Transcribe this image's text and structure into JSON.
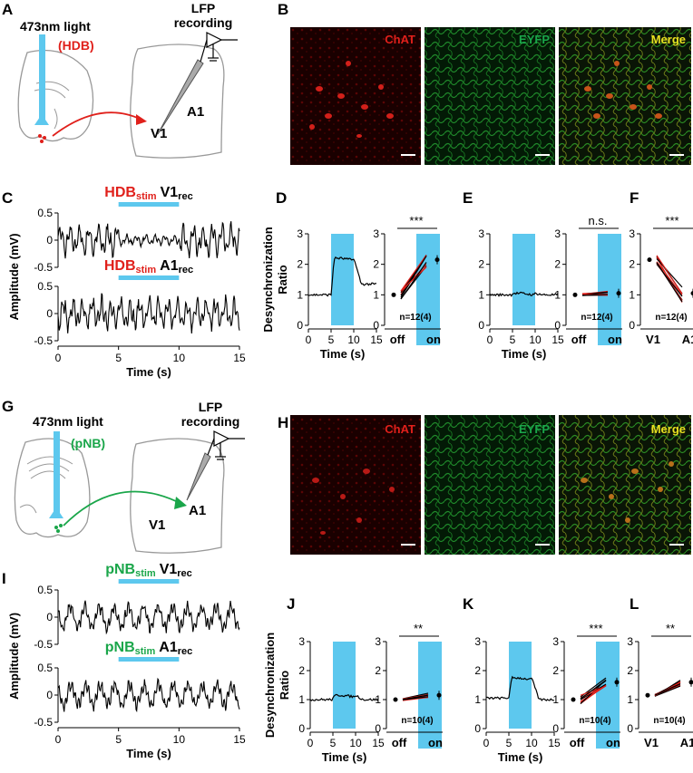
{
  "panels": {
    "A": "A",
    "B": "B",
    "C": "C",
    "D": "D",
    "E": "E",
    "F": "F",
    "G": "G",
    "H": "H",
    "I": "I",
    "J": "J",
    "K": "K",
    "L": "L"
  },
  "schematic_top": {
    "light": "473nm light",
    "region": "(HDB)",
    "region_color": "#e0201b",
    "recording_line1": "LFP",
    "recording_line2": "recording",
    "target": "V1",
    "other": "A1"
  },
  "schematic_bottom": {
    "light": "473nm light",
    "region": "(pNB)",
    "region_color": "#1aa64a",
    "recording_line1": "LFP",
    "recording_line2": "recording",
    "target": "A1",
    "other": "V1"
  },
  "micrographs": {
    "chat": "ChAT",
    "eyfp": "EYFP",
    "merge": "Merge",
    "chat_color": "#e0201b",
    "eyfp_color": "#1aa64a",
    "merge_color": "#e8e020"
  },
  "colors": {
    "light_blue": "#5dc8ee",
    "hdb_red": "#e0201b",
    "pnb_green": "#1aa64a",
    "pair_red": "#e0201b"
  },
  "traces_top": {
    "trace1": {
      "stim": "HDBstim",
      "stim_main": "HDB",
      "stim_sub": "stim",
      "rec_main": "V1",
      "rec_sub": "rec",
      "stim_color": "#e0201b"
    },
    "trace2": {
      "stim": "HDBstim",
      "stim_main": "HDB",
      "stim_sub": "stim",
      "rec_main": "A1",
      "rec_sub": "rec",
      "stim_color": "#e0201b"
    },
    "yticks": [
      "0.5",
      "0",
      "-0.5"
    ],
    "xticks": [
      "0",
      "5",
      "10",
      "15"
    ],
    "xlabel": "Time (s)",
    "ylabel": "Amplitude (mV)"
  },
  "traces_bottom": {
    "trace1": {
      "stim_main": "pNB",
      "stim_sub": "stim",
      "rec_main": "V1",
      "rec_sub": "rec",
      "stim_color": "#1aa64a"
    },
    "trace2": {
      "stim_main": "pNB",
      "stim_sub": "stim",
      "rec_main": "A1",
      "rec_sub": "rec",
      "stim_color": "#1aa64a"
    },
    "yticks": [
      "0.5",
      "0",
      "-0.5"
    ],
    "xticks": [
      "0",
      "5",
      "10",
      "15"
    ],
    "xlabel": "Time (s)",
    "ylabel": "Amplitude (mV)"
  },
  "desync_axes": {
    "ylabel1": "Desynchronization",
    "ylabel2": "Ratio",
    "yticks": [
      "3",
      "2",
      "1",
      "0"
    ],
    "xticks": [
      "0",
      "5",
      "10",
      "15"
    ],
    "xlabel": "Time (s)",
    "cat_off": "off",
    "cat_on": "on",
    "cat_v1": "V1",
    "cat_a1": "A1"
  },
  "chart_data": [
    {
      "panel": "D",
      "type": "line",
      "x": [
        0,
        5,
        10,
        15
      ],
      "values": [
        1.0,
        1.0,
        2.2,
        1.35
      ],
      "stim_window": [
        5,
        10
      ],
      "ylim": [
        0,
        3
      ],
      "xlabel": "Time (s)",
      "ylabel": "Desynchronization Ratio"
    },
    {
      "panel": "D",
      "type": "scatter",
      "categories": [
        "off",
        "on"
      ],
      "mean": [
        1.0,
        2.15
      ],
      "n_label": "n=12(4)",
      "significance": "***",
      "ylim": [
        0,
        3
      ]
    },
    {
      "panel": "E",
      "type": "line",
      "x": [
        0,
        5,
        10,
        15
      ],
      "values": [
        1.0,
        1.05,
        1.05,
        1.0
      ],
      "stim_window": [
        5,
        10
      ],
      "ylim": [
        0,
        3
      ],
      "xlabel": "Time (s)"
    },
    {
      "panel": "E",
      "type": "scatter",
      "categories": [
        "off",
        "on"
      ],
      "mean": [
        1.0,
        1.05
      ],
      "n_label": "n=12(4)",
      "significance": "n.s.",
      "ylim": [
        0,
        3
      ]
    },
    {
      "panel": "F",
      "type": "scatter",
      "categories": [
        "V1",
        "A1"
      ],
      "mean": [
        2.15,
        1.05
      ],
      "n_label": "n=12(4)",
      "significance": "***",
      "ylim": [
        0,
        3
      ]
    },
    {
      "panel": "J",
      "type": "line",
      "x": [
        0,
        5,
        10,
        15
      ],
      "values": [
        1.0,
        1.05,
        1.15,
        1.0
      ],
      "stim_window": [
        5,
        10
      ],
      "ylim": [
        0,
        3
      ],
      "xlabel": "Time (s)",
      "ylabel": "Desynchronization Ratio"
    },
    {
      "panel": "J",
      "type": "scatter",
      "categories": [
        "off",
        "on"
      ],
      "mean": [
        1.0,
        1.15
      ],
      "n_label": "n=10(4)",
      "significance": "**",
      "ylim": [
        0,
        3
      ]
    },
    {
      "panel": "K",
      "type": "line",
      "x": [
        0,
        5,
        10,
        15
      ],
      "values": [
        1.05,
        1.1,
        1.75,
        1.0
      ],
      "stim_window": [
        5,
        10
      ],
      "ylim": [
        0,
        3
      ],
      "xlabel": "Time (s)"
    },
    {
      "panel": "K",
      "type": "scatter",
      "categories": [
        "off",
        "on"
      ],
      "mean": [
        1.0,
        1.6
      ],
      "n_label": "n=10(4)",
      "significance": "***",
      "ylim": [
        0,
        3
      ]
    },
    {
      "panel": "L",
      "type": "scatter",
      "categories": [
        "V1",
        "A1"
      ],
      "mean": [
        1.15,
        1.6
      ],
      "n_label": "n=10(4)",
      "significance": "**",
      "ylim": [
        0,
        3
      ]
    }
  ]
}
